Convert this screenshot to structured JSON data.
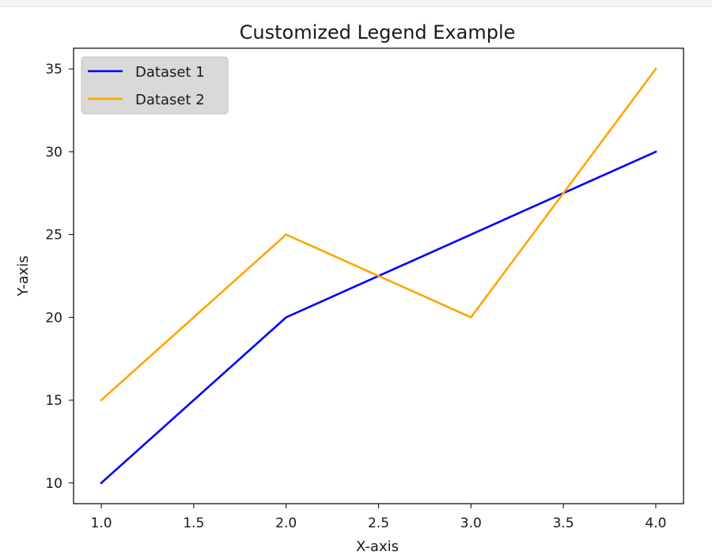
{
  "chart_data": {
    "type": "line",
    "title": "Customized Legend Example",
    "xlabel": "X-axis",
    "ylabel": "Y-axis",
    "x": [
      1,
      2,
      3,
      4
    ],
    "xlim": [
      0.85,
      4.15
    ],
    "ylim": [
      8.75,
      36.25
    ],
    "xticks": [
      1.0,
      1.5,
      2.0,
      2.5,
      3.0,
      3.5,
      4.0
    ],
    "xtick_labels": [
      "1.0",
      "1.5",
      "2.0",
      "2.5",
      "3.0",
      "3.5",
      "4.0"
    ],
    "yticks": [
      10,
      15,
      20,
      25,
      30,
      35
    ],
    "ytick_labels": [
      "10",
      "15",
      "20",
      "25",
      "30",
      "35"
    ],
    "grid": false,
    "legend_position": "upper left",
    "series": [
      {
        "name": "Dataset 1",
        "color": "#0000ff",
        "values": [
          10,
          20,
          25,
          30
        ]
      },
      {
        "name": "Dataset 2",
        "color": "#ffa500",
        "values": [
          15,
          25,
          20,
          35
        ]
      }
    ]
  }
}
